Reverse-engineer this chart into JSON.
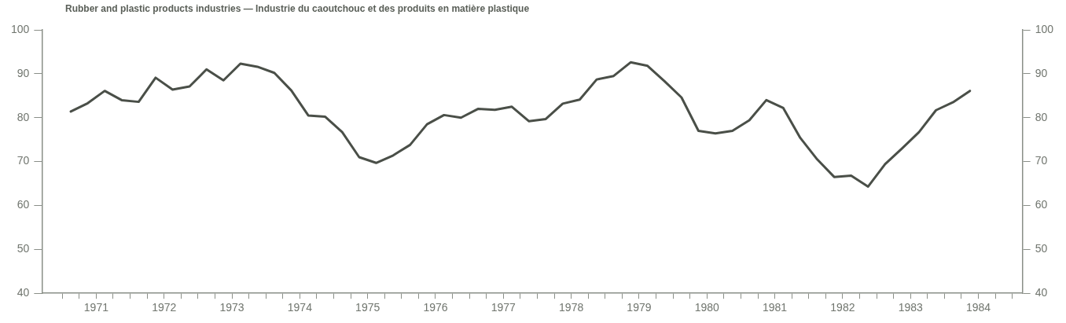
{
  "chart_data": {
    "type": "line",
    "title": "Rubber and plastic products industries — Industrie du caoutchouc et des produits en matière plastique",
    "x": [
      1971.125,
      1971.375,
      1971.625,
      1971.875,
      1972.125,
      1972.375,
      1972.625,
      1972.875,
      1973.125,
      1973.375,
      1973.625,
      1973.875,
      1974.125,
      1974.375,
      1974.625,
      1974.875,
      1975.125,
      1975.375,
      1975.625,
      1975.875,
      1976.125,
      1976.375,
      1976.625,
      1976.875,
      1977.125,
      1977.375,
      1977.625,
      1977.875,
      1978.125,
      1978.375,
      1978.625,
      1978.875,
      1979.125,
      1979.375,
      1979.625,
      1979.875,
      1980.125,
      1980.375,
      1980.625,
      1980.875,
      1981.125,
      1981.375,
      1981.625,
      1981.875,
      1982.125,
      1982.375,
      1982.625,
      1982.875,
      1983.125,
      1983.375,
      1983.625,
      1983.875,
      1984.125,
      1984.375
    ],
    "series": [
      {
        "color": "#4a4f48",
        "values": [
          81.4,
          83.3,
          86.1,
          84.0,
          83.6,
          89.1,
          86.4,
          87.1,
          91.0,
          88.5,
          92.3,
          91.6,
          90.2,
          86.2,
          80.5,
          80.2,
          76.7,
          71.0,
          69.7,
          71.4,
          73.8,
          78.5,
          80.6,
          80.0,
          82.0,
          81.8,
          82.5,
          79.2,
          79.7,
          83.2,
          84.1,
          88.7,
          89.5,
          92.6,
          91.8,
          88.3,
          84.6,
          77.0,
          76.4,
          77.0,
          79.4,
          84.0,
          82.2,
          75.4,
          70.5,
          66.5,
          66.8,
          64.3,
          69.4,
          73.0,
          76.7,
          81.7,
          83.5,
          86.1
        ]
      }
    ],
    "xlim": [
      1970.7,
      1985.15
    ],
    "xticks": [
      {
        "value": 1971,
        "label": null
      },
      {
        "value": 1971.25,
        "label": null
      },
      {
        "value": 1971.5,
        "label": "1971"
      },
      {
        "value": 1971.75,
        "label": null
      },
      {
        "value": 1972,
        "label": null
      },
      {
        "value": 1972.25,
        "label": null
      },
      {
        "value": 1972.5,
        "label": "1972"
      },
      {
        "value": 1972.75,
        "label": null
      },
      {
        "value": 1973,
        "label": null
      },
      {
        "value": 1973.25,
        "label": null
      },
      {
        "value": 1973.5,
        "label": "1973"
      },
      {
        "value": 1973.75,
        "label": null
      },
      {
        "value": 1974,
        "label": null
      },
      {
        "value": 1974.25,
        "label": null
      },
      {
        "value": 1974.5,
        "label": "1974"
      },
      {
        "value": 1974.75,
        "label": null
      },
      {
        "value": 1975,
        "label": null
      },
      {
        "value": 1975.25,
        "label": null
      },
      {
        "value": 1975.5,
        "label": "1975"
      },
      {
        "value": 1975.75,
        "label": null
      },
      {
        "value": 1976,
        "label": null
      },
      {
        "value": 1976.25,
        "label": null
      },
      {
        "value": 1976.5,
        "label": "1976"
      },
      {
        "value": 1976.75,
        "label": null
      },
      {
        "value": 1977,
        "label": null
      },
      {
        "value": 1977.25,
        "label": null
      },
      {
        "value": 1977.5,
        "label": "1977"
      },
      {
        "value": 1977.75,
        "label": null
      },
      {
        "value": 1978,
        "label": null
      },
      {
        "value": 1978.25,
        "label": null
      },
      {
        "value": 1978.5,
        "label": "1978"
      },
      {
        "value": 1978.75,
        "label": null
      },
      {
        "value": 1979,
        "label": null
      },
      {
        "value": 1979.25,
        "label": null
      },
      {
        "value": 1979.5,
        "label": "1979"
      },
      {
        "value": 1979.75,
        "label": null
      },
      {
        "value": 1980,
        "label": null
      },
      {
        "value": 1980.25,
        "label": null
      },
      {
        "value": 1980.5,
        "label": "1980"
      },
      {
        "value": 1980.75,
        "label": null
      },
      {
        "value": 1981,
        "label": null
      },
      {
        "value": 1981.25,
        "label": null
      },
      {
        "value": 1981.5,
        "label": "1981"
      },
      {
        "value": 1981.75,
        "label": null
      },
      {
        "value": 1982,
        "label": null
      },
      {
        "value": 1982.25,
        "label": null
      },
      {
        "value": 1982.5,
        "label": "1982"
      },
      {
        "value": 1982.75,
        "label": null
      },
      {
        "value": 1983,
        "label": null
      },
      {
        "value": 1983.25,
        "label": null
      },
      {
        "value": 1983.5,
        "label": "1983"
      },
      {
        "value": 1983.75,
        "label": null
      },
      {
        "value": 1984,
        "label": null
      },
      {
        "value": 1984.25,
        "label": null
      },
      {
        "value": 1984.5,
        "label": "1984"
      },
      {
        "value": 1984.75,
        "label": null
      },
      {
        "value": 1985,
        "label": null
      }
    ],
    "ylim": [
      40,
      100
    ],
    "yticks": [
      40,
      50,
      60,
      70,
      80,
      90,
      100
    ],
    "y2lim": [
      40,
      100
    ],
    "y2ticks": [
      40,
      50,
      60,
      70,
      80,
      90,
      100
    ],
    "grid": false,
    "legend": false,
    "marker": "none",
    "line_style": "solid"
  }
}
